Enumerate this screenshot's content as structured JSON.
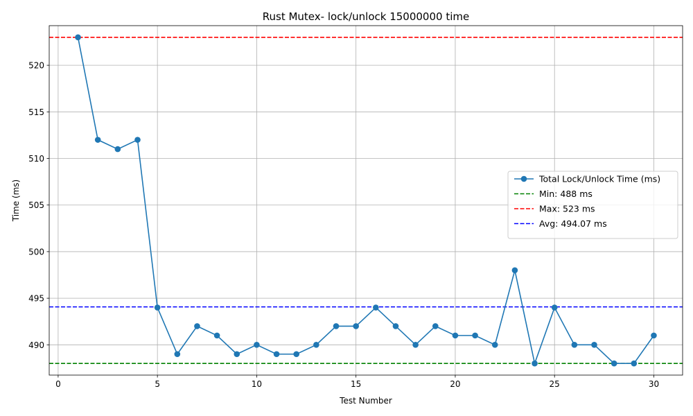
{
  "chart_data": {
    "type": "line",
    "title": "Rust Mutex- lock/unlock 15000000 time",
    "xlabel": "Test Number",
    "ylabel": "Time (ms)",
    "xlim": [
      -0.45,
      31.45
    ],
    "ylim": [
      486.75,
      524.25
    ],
    "xticks": [
      0,
      5,
      10,
      15,
      20,
      25,
      30
    ],
    "yticks": [
      490,
      495,
      500,
      505,
      510,
      515,
      520
    ],
    "grid": true,
    "legend_position": "center-right",
    "series": [
      {
        "name": "Total Lock/Unlock Time (ms)",
        "color": "#1f77b4",
        "marker": "circle",
        "x": [
          1,
          2,
          3,
          4,
          5,
          6,
          7,
          8,
          9,
          10,
          11,
          12,
          13,
          14,
          15,
          16,
          17,
          18,
          19,
          20,
          21,
          22,
          23,
          24,
          25,
          26,
          27,
          28,
          29,
          30
        ],
        "y": [
          523,
          512,
          511,
          512,
          494,
          489,
          492,
          491,
          489,
          490,
          489,
          489,
          490,
          492,
          492,
          494,
          492,
          490,
          492,
          491,
          491,
          490,
          498,
          488,
          494,
          490,
          490,
          488,
          488,
          491
        ]
      }
    ],
    "reference_lines": [
      {
        "name": "Min: 488 ms",
        "value": 488,
        "color": "#008000",
        "style": "dashed"
      },
      {
        "name": "Max: 523 ms",
        "value": 523,
        "color": "#ff0000",
        "style": "dashed"
      },
      {
        "name": "Avg: 494.07 ms",
        "value": 494.07,
        "color": "#0000ff",
        "style": "dashed"
      }
    ]
  }
}
